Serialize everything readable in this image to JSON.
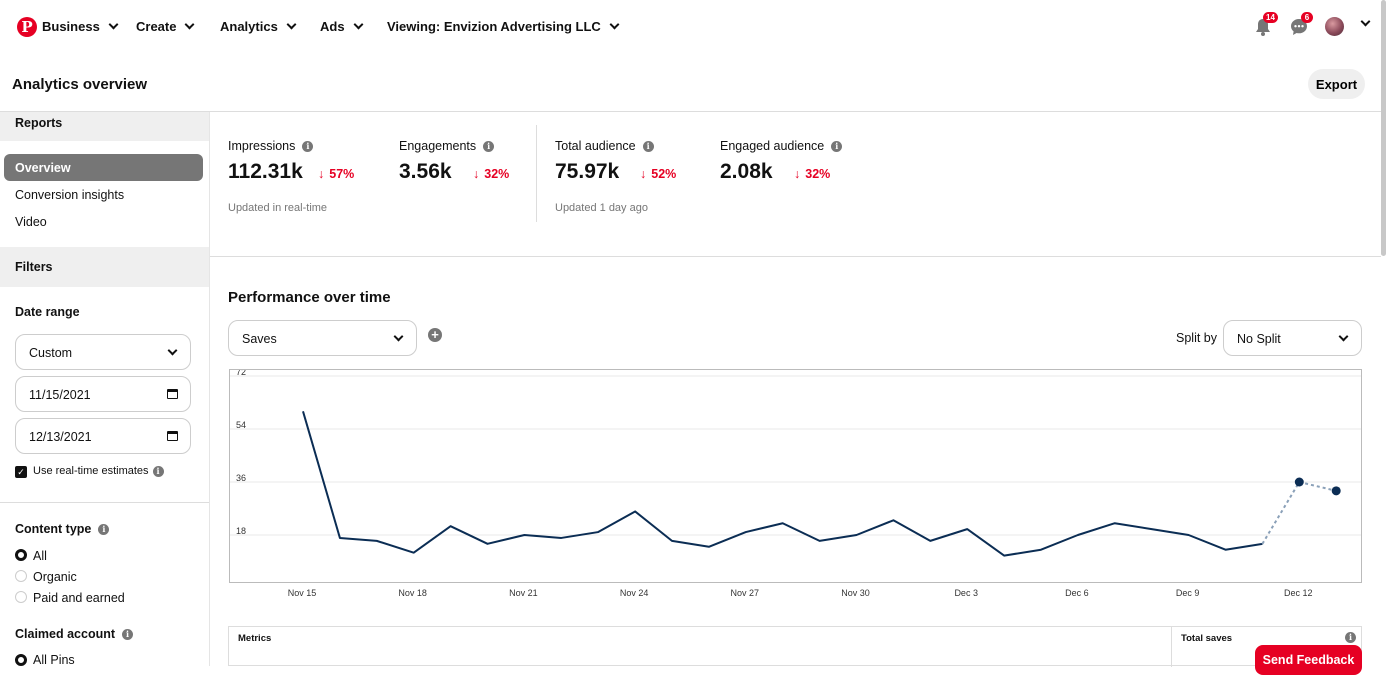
{
  "nav": {
    "brand": "Business",
    "items": [
      "Create",
      "Analytics",
      "Ads"
    ],
    "viewing": "Viewing: Envizion Advertising LLC",
    "notifications_count": "14",
    "messages_count": "6"
  },
  "header": {
    "title": "Analytics overview",
    "export_label": "Export"
  },
  "sidebar": {
    "reports_heading": "Reports",
    "reports": [
      "Overview",
      "Conversion insights",
      "Video"
    ],
    "filters_heading": "Filters",
    "date_range_label": "Date range",
    "date_range_value": "Custom",
    "start_date": "11/15/2021",
    "end_date": "12/13/2021",
    "realtime_label": "Use real-time estimates",
    "content_type_label": "Content type",
    "content_types": [
      "All",
      "Organic",
      "Paid and earned"
    ],
    "claimed_account_label": "Claimed account",
    "claimed_options": [
      "All Pins"
    ]
  },
  "metrics": [
    {
      "label": "Impressions",
      "value": "112.31k",
      "change": "57%"
    },
    {
      "label": "Engagements",
      "value": "3.56k",
      "change": "32%"
    },
    {
      "label": "Total audience",
      "value": "75.97k",
      "change": "52%"
    },
    {
      "label": "Engaged audience",
      "value": "2.08k",
      "change": "32%"
    }
  ],
  "notes": {
    "realtime": "Updated in real-time",
    "daily": "Updated 1 day ago"
  },
  "performance": {
    "title": "Performance over time",
    "metric_select": "Saves",
    "split_label": "Split by",
    "split_value": "No Split"
  },
  "table": {
    "col1": "Metrics",
    "col2": "Total saves"
  },
  "feedback_label": "Send Feedback",
  "chart_data": {
    "type": "line",
    "x": [
      "Nov 15",
      "Nov 16",
      "Nov 17",
      "Nov 18",
      "Nov 19",
      "Nov 20",
      "Nov 21",
      "Nov 22",
      "Nov 23",
      "Nov 24",
      "Nov 25",
      "Nov 26",
      "Nov 27",
      "Nov 28",
      "Nov 29",
      "Nov 30",
      "Dec 1",
      "Dec 2",
      "Dec 3",
      "Dec 4",
      "Dec 5",
      "Dec 6",
      "Dec 7",
      "Dec 8",
      "Dec 9",
      "Dec 10",
      "Dec 11",
      "Dec 12",
      "Dec 13"
    ],
    "x_tick_labels": [
      "Nov 15",
      "Nov 18",
      "Nov 21",
      "Nov 24",
      "Nov 27",
      "Nov 30",
      "Dec 3",
      "Dec 6",
      "Dec 9",
      "Dec 12"
    ],
    "y_ticks": [
      18,
      36,
      54,
      72
    ],
    "ylim": [
      0,
      72
    ],
    "series": [
      {
        "values": [
          60,
          17,
          16,
          12,
          21,
          15,
          18,
          17,
          19,
          26,
          16,
          14,
          19,
          22,
          16,
          18,
          23,
          16,
          20,
          11,
          13,
          18,
          22,
          20,
          18,
          13,
          15,
          36,
          33
        ],
        "estimated_from_index": 26,
        "color": "#0b2d54"
      }
    ],
    "grid": true
  }
}
